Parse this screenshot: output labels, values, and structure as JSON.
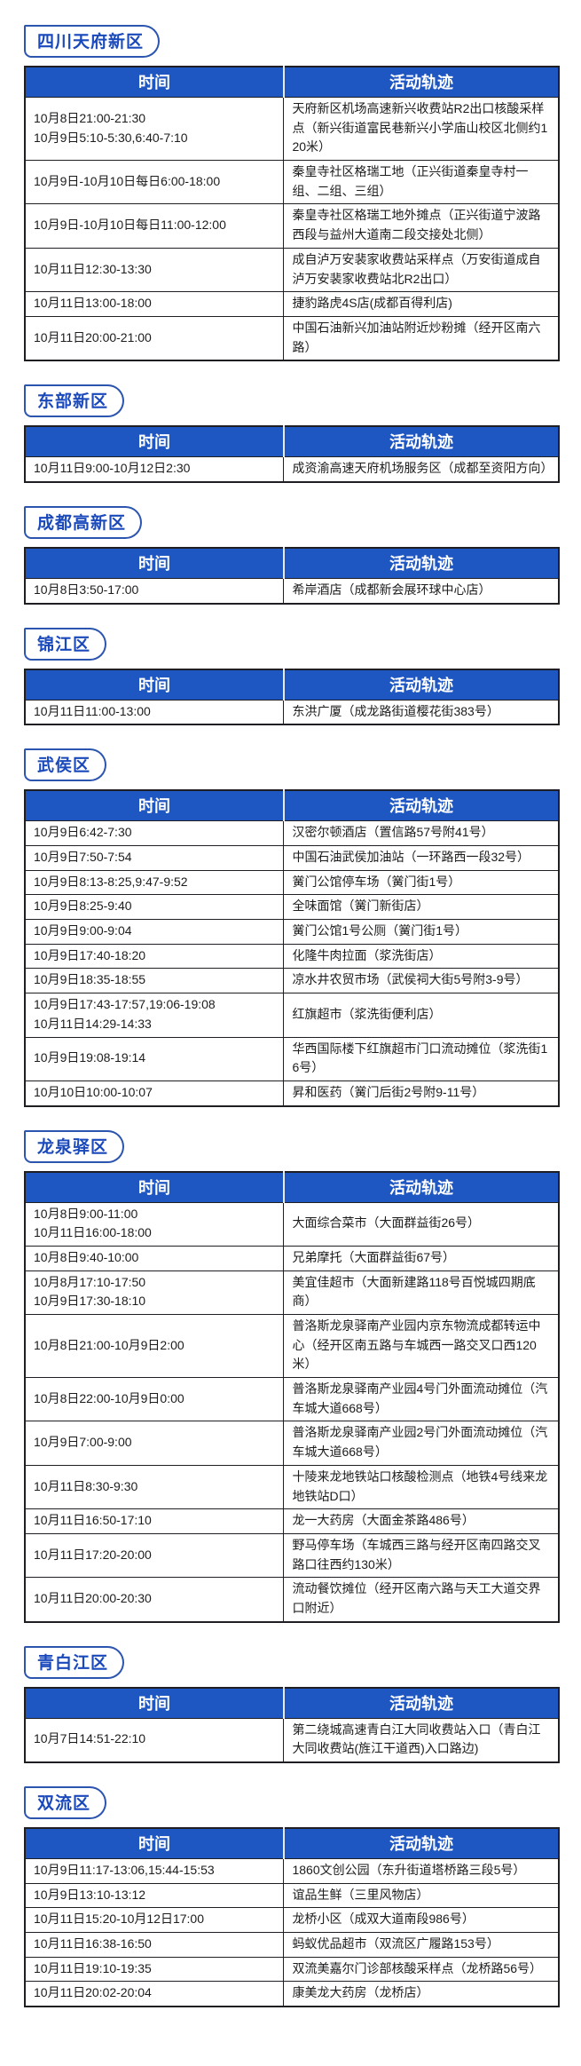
{
  "table_header": {
    "time": "时间",
    "activity": "活动轨迹"
  },
  "colors": {
    "header_bg": "#1E56C2",
    "header_text": "#FFFFFF",
    "badge_text": "#1A49BB",
    "badge_border": "#2C55B0",
    "table_border": "#1F1F23",
    "body_text": "#1C1C1E",
    "page_bg": "#FFFFFF"
  },
  "sections": [
    {
      "name": "四川天府新区",
      "rows": [
        {
          "time": "10月8日21:00-21:30\n10月9日5:10-5:30,6:40-7:10",
          "activity": "天府新区机场高速新兴收费站R2出口核酸采样点（新兴街道富民巷新兴小学庙山校区北侧约120米）"
        },
        {
          "time": "10月9日-10月10日每日6:00-18:00",
          "activity": "秦皇寺社区格瑞工地（正兴街道秦皇寺村一组、二组、三组）"
        },
        {
          "time": "10月9日-10月10日每日11:00-12:00",
          "activity": "秦皇寺社区格瑞工地外摊点（正兴街道宁波路西段与益州大道南二段交接处北侧）"
        },
        {
          "time": "10月11日12:30-13:30",
          "activity": "成自泸万安裴家收费站采样点（万安街道成自泸万安裴家收费站北R2出口）"
        },
        {
          "time": "10月11日13:00-18:00",
          "activity": "捷豹路虎4S店(成都百得利店)"
        },
        {
          "time": "10月11日20:00-21:00",
          "activity": "中国石油新兴加油站附近炒粉摊（经开区南六路）"
        }
      ]
    },
    {
      "name": "东部新区",
      "rows": [
        {
          "time": "10月11日9:00-10月12日2:30",
          "activity": "成资渝高速天府机场服务区（成都至资阳方向）"
        }
      ]
    },
    {
      "name": "成都高新区",
      "rows": [
        {
          "time": "10月8日3:50-17:00",
          "activity": "希岸酒店（成都新会展环球中心店）"
        }
      ]
    },
    {
      "name": "锦江区",
      "rows": [
        {
          "time": "10月11日11:00-13:00",
          "activity": "东洪广厦（成龙路街道樱花街383号）"
        }
      ]
    },
    {
      "name": "武侯区",
      "rows": [
        {
          "time": "10月9日6:42-7:30",
          "activity": "汉密尔顿酒店（置信路57号附41号）"
        },
        {
          "time": "10月9日7:50-7:54",
          "activity": "中国石油武侯加油站（一环路西一段32号）"
        },
        {
          "time": "10月9日8:13-8:25,9:47-9:52",
          "activity": "黉门公馆停车场（黉门街1号）"
        },
        {
          "time": "10月9日8:25-9:40",
          "activity": "全味面馆（黉门新街店）"
        },
        {
          "time": "10月9日9:00-9:04",
          "activity": "黉门公馆1号公厕（黉门街1号）"
        },
        {
          "time": "10月9日17:40-18:20",
          "activity": "化隆牛肉拉面（浆洗街店）"
        },
        {
          "time": "10月9日18:35-18:55",
          "activity": "凉水井农贸市场（武侯祠大街5号附3-9号）"
        },
        {
          "time": "10月9日17:43-17:57,19:06-19:08\n10月11日14:29-14:33",
          "activity": "红旗超市（浆洗街便利店）"
        },
        {
          "time": "10月9日19:08-19:14",
          "activity": "华西国际楼下红旗超市门口流动摊位（浆洗街16号）"
        },
        {
          "time": "10月10日10:00-10:07",
          "activity": "昇和医药（黉门后街2号附9-11号）"
        }
      ]
    },
    {
      "name": "龙泉驿区",
      "rows": [
        {
          "time": "10月8日9:00-11:00\n10月11日16:00-18:00",
          "activity": "大面综合菜市（大面群益街26号）"
        },
        {
          "time": "10月8日9:40-10:00",
          "activity": "兄弟摩托（大面群益街67号）"
        },
        {
          "time": "10月8月17:10-17:50\n10月9日17:30-18:10",
          "activity": "美宜佳超市（大面新建路118号百悦城四期底商）"
        },
        {
          "time": "10月8日21:00-10月9日2:00",
          "activity": "普洛斯龙泉驿南产业园内京东物流成都转运中心（经开区南五路与车城西一路交叉口西120米）"
        },
        {
          "time": "10月8日22:00-10月9日0:00",
          "activity": "普洛斯龙泉驿南产业园4号门外面流动摊位（汽车城大道668号）"
        },
        {
          "time": "10月9日7:00-9:00",
          "activity": "普洛斯龙泉驿南产业园2号门外面流动摊位（汽车城大道668号）"
        },
        {
          "time": "10月11日8:30-9:30",
          "activity": "十陵来龙地铁站口核酸检测点（地铁4号线来龙地铁站D口）"
        },
        {
          "time": "10月11日16:50-17:10",
          "activity": "龙一大药房（大面金茶路486号）"
        },
        {
          "time": "10月11日17:20-20:00",
          "activity": "野马停车场（车城西三路与经开区南四路交叉路口往西约130米）"
        },
        {
          "time": "10月11日20:00-20:30",
          "activity": "流动餐饮摊位（经开区南六路与天工大道交界口附近）"
        }
      ]
    },
    {
      "name": "青白江区",
      "rows": [
        {
          "time": "10月7日14:51-22:10",
          "activity": "第二绕城高速青白江大同收费站入口（青白江大同收费站(旌江干道西)入口路边)"
        }
      ]
    },
    {
      "name": "双流区",
      "rows": [
        {
          "time": "10月9日11:17-13:06,15:44-15:53",
          "activity": "1860文创公园（东升街道塔桥路三段5号）"
        },
        {
          "time": "10月9日13:10-13:12",
          "activity": "谊品生鲜（三里风物店）"
        },
        {
          "time": "10月11日15:20-10月12日17:00",
          "activity": "龙桥小区（成双大道南段986号）"
        },
        {
          "time": "10月11日16:38-16:50",
          "activity": "蚂蚁优品超市（双流区广履路153号）"
        },
        {
          "time": "10月11日19:10-19:35",
          "activity": "双流美嘉尔门诊部核酸采样点（龙桥路56号）"
        },
        {
          "time": "10月11日20:02-20:04",
          "activity": "康美龙大药房（龙桥店）"
        }
      ]
    }
  ]
}
